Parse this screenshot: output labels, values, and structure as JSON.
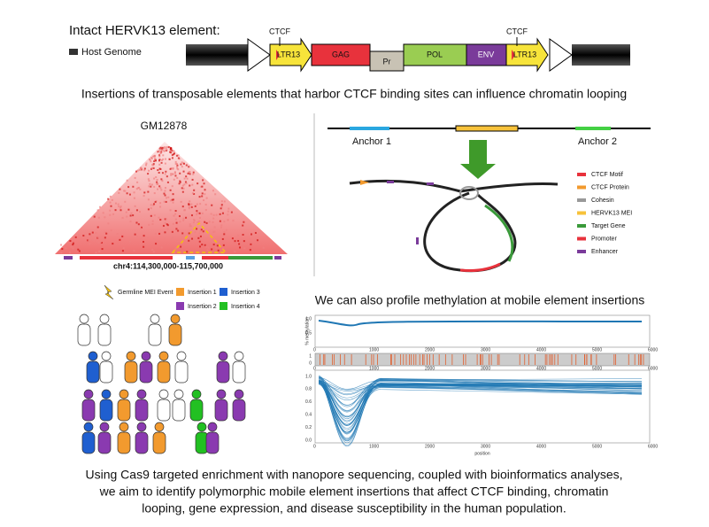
{
  "header": {
    "title": "Intact HERVK13 element:",
    "legend": "Host Genome",
    "ctcf": [
      "CTCF",
      "CTCF"
    ],
    "segments": [
      "LTR13",
      "GAG",
      "Pr",
      "POL",
      "ENV",
      "LTR13"
    ]
  },
  "caption_top": "Insertions of transposable elements that harbor CTCF binding sites can influence chromatin looping",
  "hic": {
    "title": "GM12878",
    "region": "chr4:114,300,000-115,700,000"
  },
  "loop": {
    "anchors": [
      "Anchor 1",
      "Anchor 2"
    ],
    "legend": [
      "CTCF Motif",
      "CTCF Protein",
      "Cohesin",
      "HERVK13 MEI",
      "Target Gene",
      "Promoter",
      "Enhancer"
    ]
  },
  "pedigree": {
    "legend": [
      "Germline MEI Event",
      "Insertion 1",
      "Insertion 3",
      "Insertion 2",
      "Insertion 4"
    ]
  },
  "methylation": {
    "heading": "We can also profile methylation at mobile element insertions",
    "top_y_label": "% methylation",
    "top_y_ticks": [
      "1.0",
      "0.5"
    ],
    "top_x_ticks": [
      "0",
      "1000",
      "2000",
      "3000",
      "4000",
      "5000",
      "6000"
    ],
    "mid_y_ticks": [
      "1",
      "0"
    ],
    "mid_x_ticks": [
      "0",
      "1000",
      "2000",
      "3000",
      "4000",
      "5000",
      "6000"
    ],
    "bottom_y_ticks": [
      "1.0",
      "0.8",
      "0.6",
      "0.4",
      "0.2",
      "0.0"
    ],
    "bottom_x_ticks": [
      "0",
      "1000",
      "2000",
      "3000",
      "4000",
      "5000",
      "6000"
    ],
    "x_label": "position"
  },
  "caption_bottom": [
    "Using Cas9 targeted enrichment with nanopore sequencing, coupled with bioinformatics analyses,",
    "we aim to identify polymorphic mobile element insertions that affect CTCF binding, chromatin",
    "looping, gene expression, and disease susceptibility in the human population."
  ]
}
